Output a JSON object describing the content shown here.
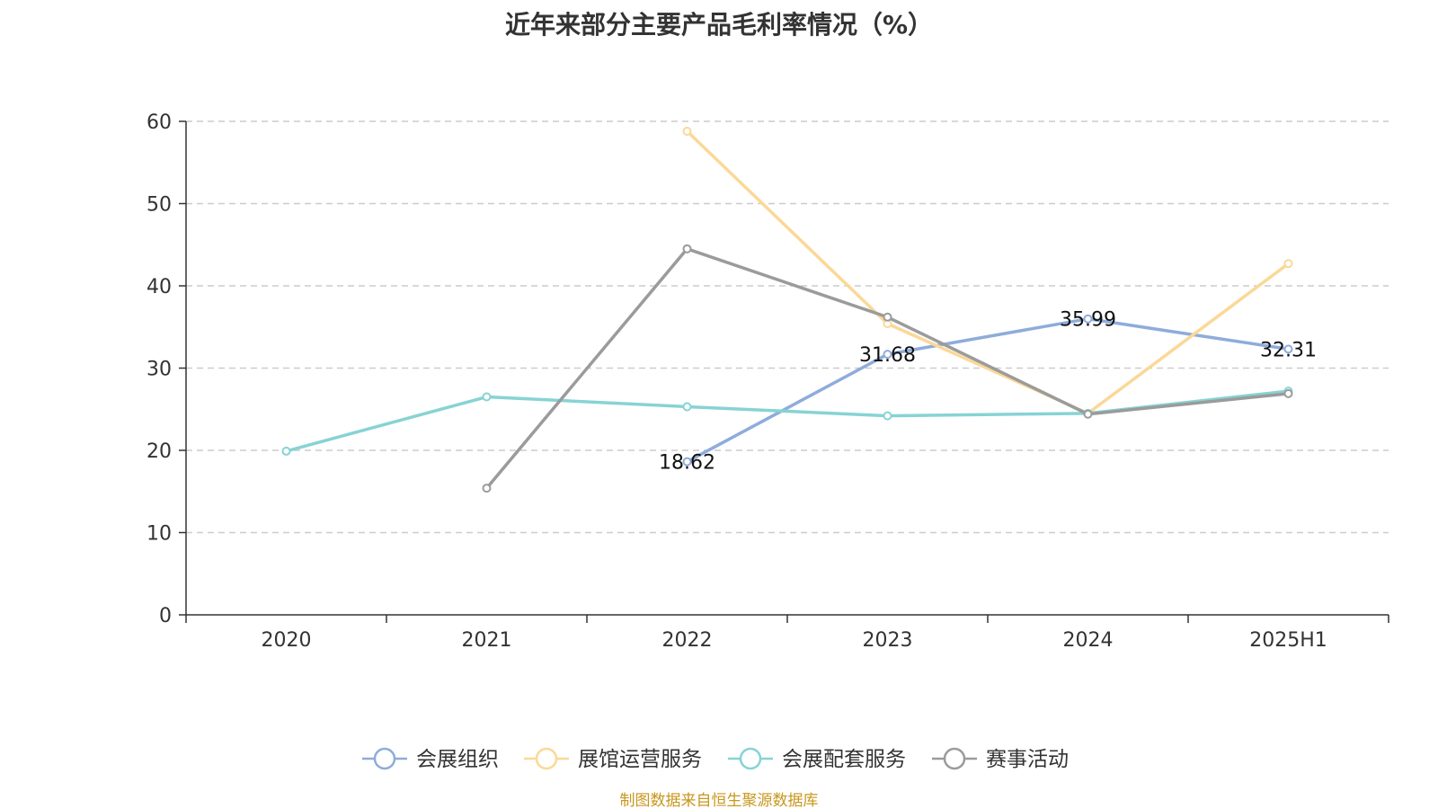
{
  "chart_data": {
    "type": "line",
    "title": "近年来部分主要产品毛利率情况（%）",
    "categories": [
      "2020",
      "2021",
      "2022",
      "2023",
      "2024",
      "2025H1"
    ],
    "ylim": [
      0,
      60
    ],
    "yticks": [
      0,
      10,
      20,
      30,
      40,
      50,
      60
    ],
    "grid": true,
    "legend_position": "bottom",
    "series": [
      {
        "name": "会展组织",
        "color": "#8eacdb",
        "values": [
          null,
          null,
          18.62,
          31.68,
          35.99,
          32.31
        ],
        "show_labels": true
      },
      {
        "name": "展馆运营服务",
        "color": "#fbd897",
        "values": [
          null,
          null,
          58.8,
          35.4,
          24.5,
          42.7
        ],
        "show_labels": false
      },
      {
        "name": "会展配套服务",
        "color": "#87d3d4",
        "values": [
          19.9,
          26.5,
          25.3,
          24.2,
          24.5,
          27.2
        ],
        "show_labels": false
      },
      {
        "name": "赛事活动",
        "color": "#9b9b9b",
        "values": [
          null,
          15.4,
          44.5,
          36.2,
          24.4,
          26.9
        ],
        "show_labels": false
      }
    ],
    "source": "制图数据来自恒生聚源数据库"
  }
}
